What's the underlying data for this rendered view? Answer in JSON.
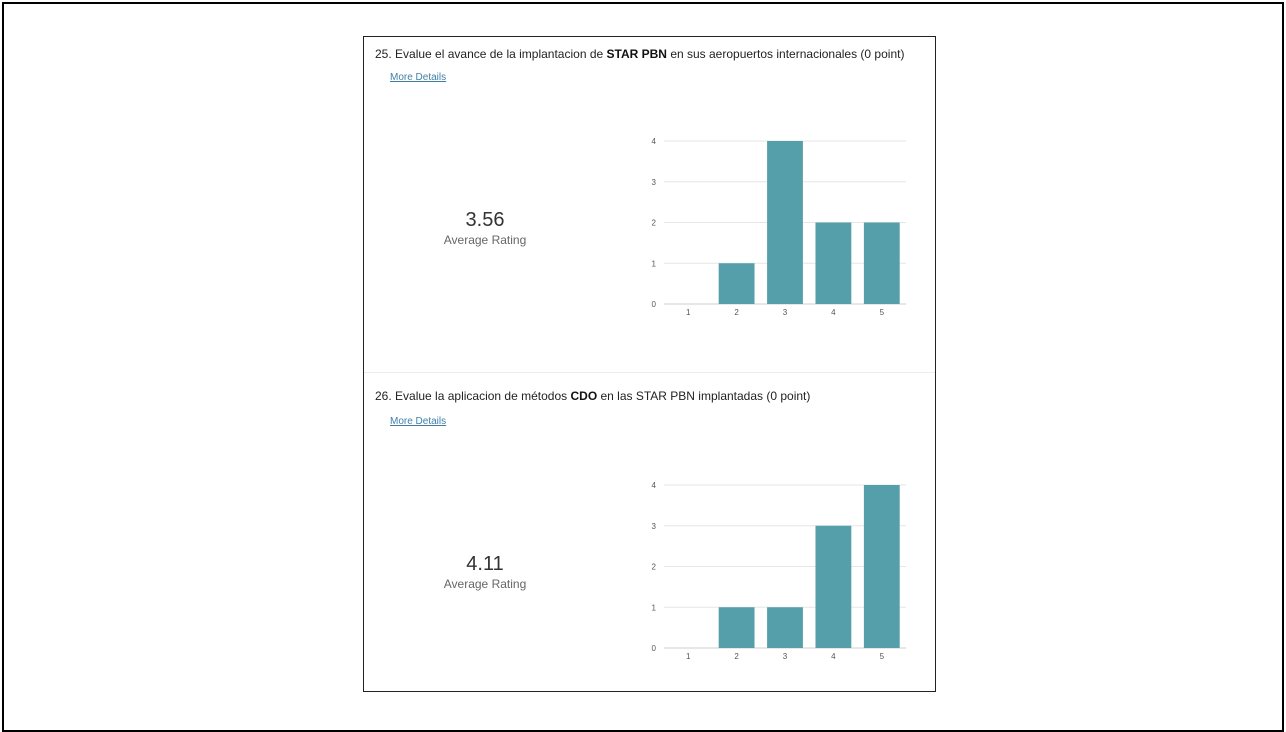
{
  "questions": [
    {
      "number": "25.",
      "text_before": "Evalue el avance de la implantacion de",
      "text_bold": "STAR PBN",
      "text_after": "en sus aeropuertos internacionales (0 point)",
      "more_details": "More Details",
      "average": "3.56",
      "average_label": "Average Rating"
    },
    {
      "number": "26.",
      "text_before": "Evalue la aplicacion de métodos",
      "text_bold": "CDO",
      "text_after": "en las STAR PBN implantadas (0 point)",
      "more_details": "More Details",
      "average": "4.11",
      "average_label": "Average Rating"
    }
  ],
  "colors": {
    "bar": "#549fa9",
    "grid": "#e6e6e6",
    "link": "#3f7fa6"
  },
  "chart_data": [
    {
      "type": "bar",
      "categories": [
        "1",
        "2",
        "3",
        "4",
        "5"
      ],
      "values": [
        0,
        1,
        4,
        2,
        2
      ],
      "yticks": [
        "0",
        "1",
        "2",
        "3",
        "4"
      ],
      "ylim": [
        0,
        4
      ],
      "grid": true
    },
    {
      "type": "bar",
      "categories": [
        "1",
        "2",
        "3",
        "4",
        "5"
      ],
      "values": [
        0,
        1,
        1,
        3,
        4
      ],
      "yticks": [
        "0",
        "1",
        "2",
        "3",
        "4"
      ],
      "ylim": [
        0,
        4
      ],
      "grid": true
    }
  ]
}
